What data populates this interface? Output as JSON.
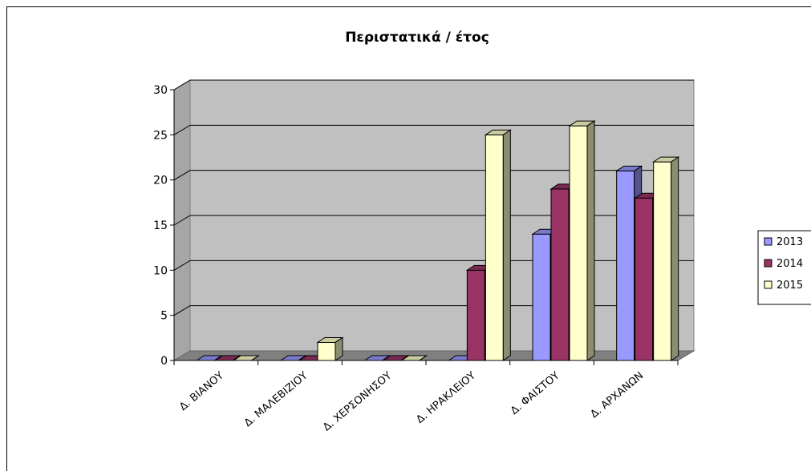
{
  "chart_data": {
    "type": "bar",
    "title": "Περιστατικά / έτος",
    "categories": [
      "Δ. ΒΙΑΝΟΥ",
      "Δ. ΜΑΛΕΒΙΖΙΟΥ",
      "Δ. ΧΕΡΣΟΝΗΣΟΥ",
      "Δ. ΗΡΑΚΛΕΙΟΥ",
      "Δ. ΦΑΙΣΤΟΥ",
      "Δ. ΑΡΧΑΝΩΝ"
    ],
    "series": [
      {
        "name": "2013",
        "values": [
          0,
          0,
          0,
          0,
          14,
          21
        ],
        "color": "#9999ff"
      },
      {
        "name": "2014",
        "values": [
          0,
          0,
          0,
          10,
          19,
          18
        ],
        "color": "#993366"
      },
      {
        "name": "2015",
        "values": [
          0,
          2,
          0,
          25,
          26,
          22
        ],
        "color": "#ffffcc"
      }
    ],
    "ylim": [
      0,
      30
    ],
    "yticks": [
      0,
      5,
      10,
      15,
      20,
      25,
      30
    ],
    "grid": true,
    "legend_position": "right",
    "plot_background": "#c0c0c0"
  }
}
